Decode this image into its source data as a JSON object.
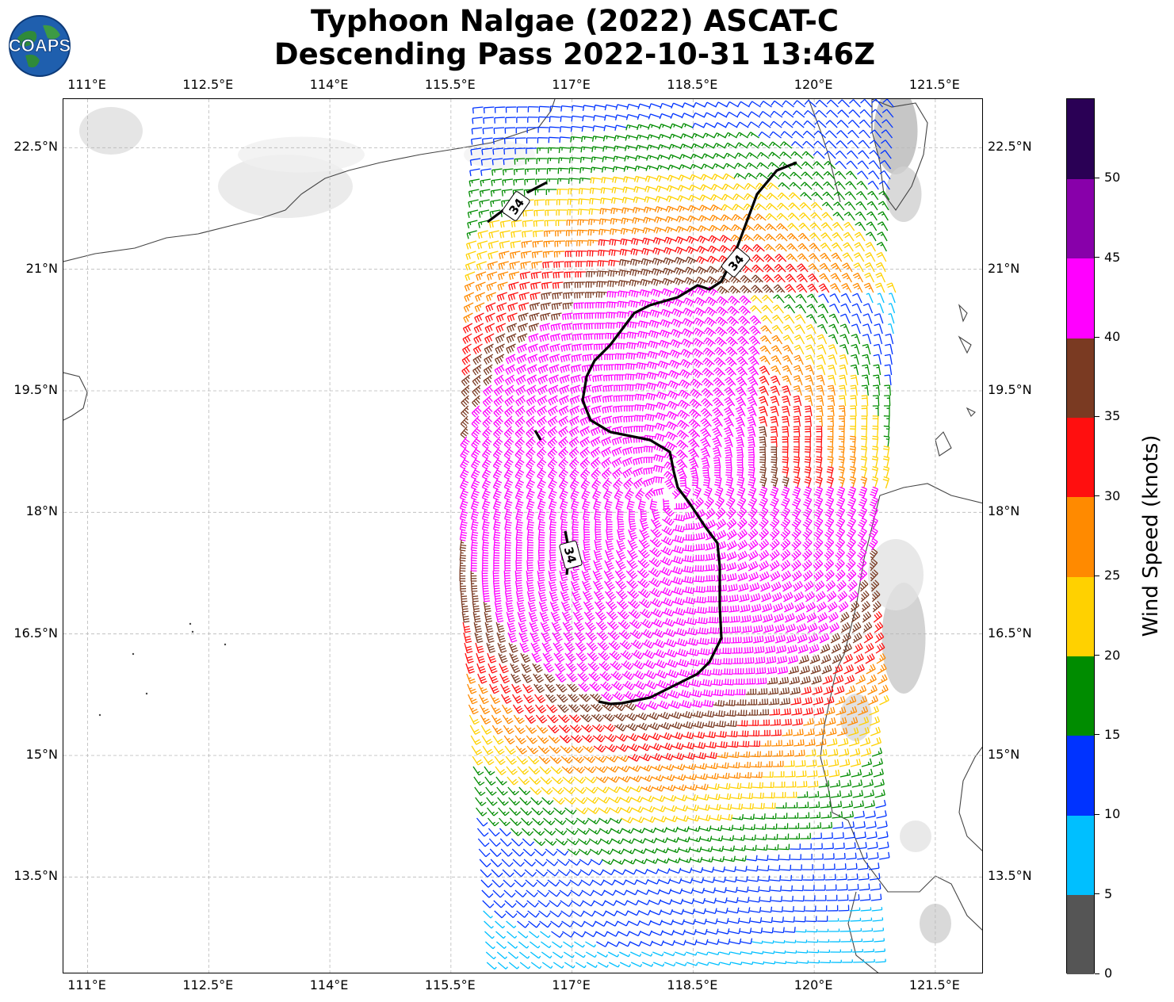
{
  "title": {
    "line1": "Typhoon Nalgae (2022) ASCAT-C",
    "line2": "Descending Pass 2022-10-31 13:46Z"
  },
  "logo": {
    "text": "COAPS",
    "icon": "globe-logo-icon"
  },
  "map": {
    "projection": "plate-carree",
    "lon_range": [
      110.7,
      122.1
    ],
    "lat_range": [
      12.3,
      23.1
    ],
    "lon_ticks": [
      "111°E",
      "112.5°E",
      "114°E",
      "115.5°E",
      "117°E",
      "118.5°E",
      "120°E",
      "121.5°E"
    ],
    "lat_ticks": [
      "22.5°N",
      "21°N",
      "19.5°N",
      "18°N",
      "16.5°N",
      "15°N",
      "13.5°N"
    ],
    "grid": "dashed-gray",
    "contour_label": "34",
    "storm_center_approx": {
      "lon": 118.2,
      "lat": 18.2
    }
  },
  "colorbar": {
    "label": "Wind Speed (knots)",
    "ticks": [
      "0",
      "5",
      "10",
      "15",
      "20",
      "25",
      "30",
      "35",
      "40",
      "45",
      "50"
    ],
    "colors": [
      "#555555",
      "#00bfff",
      "#0033ff",
      "#008c00",
      "#ffd100",
      "#ff8a00",
      "#ff0f0f",
      "#7a3a22",
      "#ff00ff",
      "#8800aa",
      "#2a0055"
    ]
  }
}
